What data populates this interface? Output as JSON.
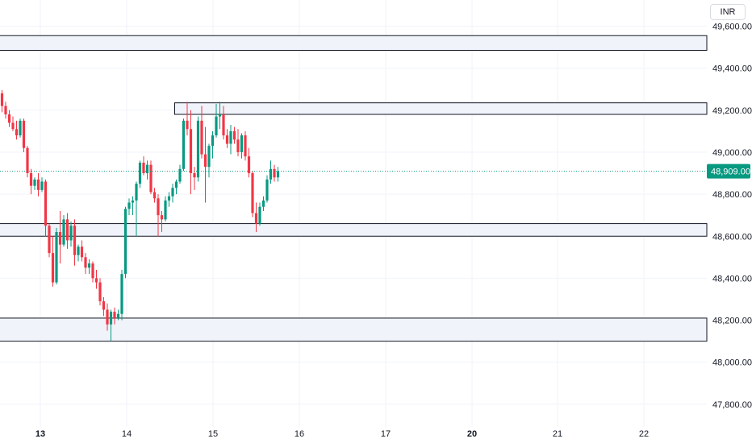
{
  "header": {
    "currency": "INR"
  },
  "chart_data": {
    "type": "candlestick",
    "y_axis": {
      "ticks": [
        49600,
        49400,
        49200,
        49000,
        48800,
        48600,
        48400,
        48200,
        48000,
        47800
      ],
      "tick_labels": [
        "49,600.00",
        "49,400.00",
        "49,200.00",
        "49,000.00",
        "48,800.00",
        "48,600.00",
        "48,400.00",
        "48,200.00",
        "48,000.00",
        "47,800.00"
      ],
      "range": [
        47700,
        49720
      ]
    },
    "x_axis": {
      "ticks": [
        {
          "label": "13",
          "bold": true
        },
        {
          "label": "14",
          "bold": false
        },
        {
          "label": "15",
          "bold": false
        },
        {
          "label": "16",
          "bold": false
        },
        {
          "label": "17",
          "bold": false
        },
        {
          "label": "20",
          "bold": true
        },
        {
          "label": "21",
          "bold": false
        },
        {
          "label": "22",
          "bold": false
        }
      ]
    },
    "last_price": {
      "value": 48909,
      "label": "48,909.00"
    },
    "zones": [
      {
        "top": 49555,
        "bottom": 49485,
        "extent": "full"
      },
      {
        "top": 49235,
        "bottom": 49180,
        "extent": "partial"
      },
      {
        "top": 48660,
        "bottom": 48600,
        "extent": "full"
      },
      {
        "top": 48210,
        "bottom": 48100,
        "extent": "full"
      }
    ],
    "colors": {
      "up": "#089981",
      "down": "#f23645",
      "zone_fill": "#f0f3fa",
      "zone_stroke": "#131722",
      "grid": "#f0f3fa",
      "price_line": "#089981"
    },
    "candles": [
      [
        49280,
        49295,
        49190,
        49220
      ],
      [
        49220,
        49240,
        49160,
        49180
      ],
      [
        49180,
        49200,
        49120,
        49140
      ],
      [
        49140,
        49170,
        49100,
        49110
      ],
      [
        49110,
        49150,
        49060,
        49080
      ],
      [
        49080,
        49160,
        49070,
        49150
      ],
      [
        49150,
        49160,
        49000,
        49020
      ],
      [
        49020,
        49030,
        48880,
        48900
      ],
      [
        48900,
        48920,
        48800,
        48840
      ],
      [
        48840,
        48880,
        48820,
        48870
      ],
      [
        48870,
        48900,
        48790,
        48820
      ],
      [
        48820,
        48880,
        48810,
        48860
      ],
      [
        48860,
        48870,
        48600,
        48650
      ],
      [
        48650,
        48660,
        48500,
        48520
      ],
      [
        48520,
        48600,
        48360,
        48380
      ],
      [
        48380,
        48640,
        48370,
        48620
      ],
      [
        48620,
        48720,
        48470,
        48560
      ],
      [
        48560,
        48700,
        48550,
        48680
      ],
      [
        48680,
        48710,
        48540,
        48580
      ],
      [
        48580,
        48670,
        48550,
        48650
      ],
      [
        48650,
        48680,
        48460,
        48510
      ],
      [
        48510,
        48560,
        48480,
        48550
      ],
      [
        48550,
        48580,
        48480,
        48500
      ],
      [
        48500,
        48520,
        48420,
        48450
      ],
      [
        48450,
        48490,
        48420,
        48470
      ],
      [
        48470,
        48480,
        48380,
        48400
      ],
      [
        48400,
        48440,
        48350,
        48380
      ],
      [
        48380,
        48400,
        48270,
        48290
      ],
      [
        48290,
        48310,
        48220,
        48250
      ],
      [
        48250,
        48280,
        48150,
        48180
      ],
      [
        48180,
        48250,
        48100,
        48240
      ],
      [
        48240,
        48260,
        48180,
        48210
      ],
      [
        48210,
        48250,
        48200,
        48230
      ],
      [
        48230,
        48440,
        48200,
        48420
      ],
      [
        48420,
        48740,
        48400,
        48730
      ],
      [
        48730,
        48780,
        48700,
        48760
      ],
      [
        48760,
        48790,
        48700,
        48770
      ],
      [
        48770,
        48860,
        48600,
        48850
      ],
      [
        48850,
        48960,
        48830,
        48950
      ],
      [
        48950,
        48980,
        48890,
        48900
      ],
      [
        48900,
        48960,
        48870,
        48940
      ],
      [
        48940,
        48960,
        48800,
        48810
      ],
      [
        48810,
        48830,
        48760,
        48780
      ],
      [
        48780,
        48800,
        48600,
        48700
      ],
      [
        48700,
        48720,
        48620,
        48680
      ],
      [
        48680,
        48790,
        48670,
        48770
      ],
      [
        48770,
        48810,
        48740,
        48790
      ],
      [
        48790,
        48850,
        48760,
        48830
      ],
      [
        48830,
        48870,
        48800,
        48860
      ],
      [
        48860,
        48940,
        48850,
        48920
      ],
      [
        48920,
        49160,
        48910,
        49150
      ],
      [
        49150,
        49240,
        49080,
        49110
      ],
      [
        49110,
        49200,
        48800,
        48900
      ],
      [
        48900,
        48930,
        48820,
        48880
      ],
      [
        48880,
        49170,
        48860,
        49150
      ],
      [
        49150,
        49220,
        48970,
        48990
      ],
      [
        48990,
        49120,
        48760,
        48930
      ],
      [
        48930,
        49040,
        48880,
        49030
      ],
      [
        49030,
        49100,
        48970,
        49080
      ],
      [
        49080,
        49230,
        49070,
        49170
      ],
      [
        49170,
        49240,
        49110,
        49180
      ],
      [
        49180,
        49220,
        49060,
        49080
      ],
      [
        49080,
        49110,
        49020,
        49040
      ],
      [
        49040,
        49130,
        48990,
        49100
      ],
      [
        49100,
        49120,
        49040,
        49060
      ],
      [
        49060,
        49110,
        48980,
        49000
      ],
      [
        49000,
        49090,
        48970,
        49080
      ],
      [
        49080,
        49100,
        48960,
        48980
      ],
      [
        48980,
        49020,
        48880,
        48900
      ],
      [
        48900,
        48910,
        48690,
        48710
      ],
      [
        48710,
        48760,
        48620,
        48660
      ],
      [
        48660,
        48760,
        48650,
        48740
      ],
      [
        48740,
        48790,
        48720,
        48770
      ],
      [
        48770,
        48890,
        48760,
        48870
      ],
      [
        48870,
        48960,
        48850,
        48920
      ],
      [
        48920,
        48940,
        48860,
        48880
      ],
      [
        48880,
        48930,
        48860,
        48909
      ]
    ]
  }
}
